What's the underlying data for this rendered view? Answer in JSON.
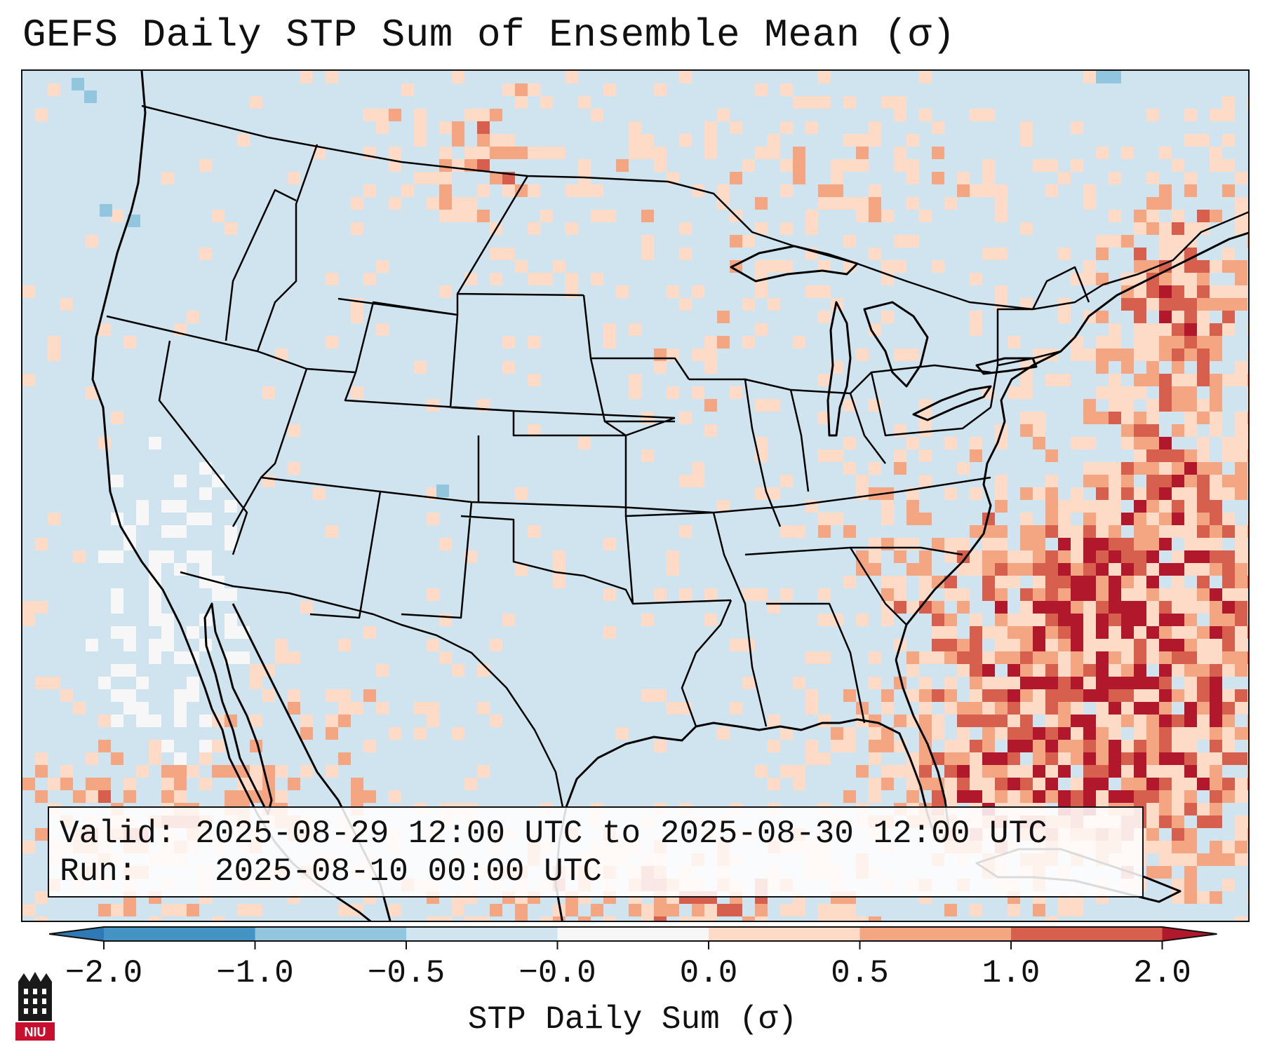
{
  "title": "GEFS Daily STP Sum of Ensemble Mean (σ)",
  "info": {
    "valid_label": "Valid:",
    "valid_value": "2025-08-29 12:00 UTC to 2025-08-30 12:00 UTC",
    "run_label": "Run:",
    "run_value": "2025-08-10 00:00 UTC"
  },
  "colorbar": {
    "label": "STP Daily Sum (σ)",
    "ticks": [
      "−2.0",
      "−1.0",
      "−0.5",
      "−0.0",
      "0.0",
      "0.5",
      "1.0",
      "2.0"
    ],
    "colors": {
      "below": "#2f79b5",
      "neg_2_to_1": "#4393c3",
      "neg_1_to_05": "#92c5de",
      "neg_05_to_0": "#d1e5f0",
      "zero": "#f7f7f7",
      "pos_0_to_05": "#fddbc7",
      "pos_05_to_1": "#f4a582",
      "pos_1_to_2": "#d6604d",
      "above": "#b2182b"
    }
  },
  "logo": {
    "text": "NIU",
    "color": "#c8102e"
  }
}
